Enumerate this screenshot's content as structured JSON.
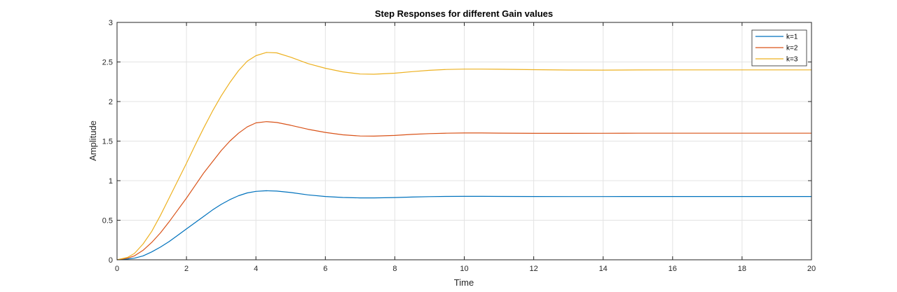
{
  "chart_data": {
    "type": "line",
    "title": "Step Responses for different Gain values",
    "xlabel": "Time",
    "ylabel": "Amplitude",
    "xlim": [
      0,
      20
    ],
    "ylim": [
      0,
      3
    ],
    "xticks": [
      0,
      2,
      4,
      6,
      8,
      10,
      12,
      14,
      16,
      18,
      20
    ],
    "yticks": [
      0,
      0.5,
      1,
      1.5,
      2,
      2.5,
      3
    ],
    "grid": true,
    "legend_position": "top-right",
    "series": [
      {
        "name": "k=1",
        "color": "#0072BD",
        "x": [
          0,
          0.3,
          0.5,
          0.75,
          1,
          1.25,
          1.5,
          1.75,
          2,
          2.25,
          2.5,
          2.75,
          3,
          3.25,
          3.5,
          3.75,
          4,
          4.3,
          4.6,
          5,
          5.5,
          6,
          6.5,
          7,
          7.4,
          8,
          8.5,
          9,
          9.5,
          10,
          10.5,
          11,
          12,
          13,
          14,
          15,
          16,
          17,
          18,
          19,
          20
        ],
        "y": [
          0,
          0.01,
          0.02,
          0.05,
          0.1,
          0.16,
          0.23,
          0.31,
          0.39,
          0.47,
          0.55,
          0.63,
          0.7,
          0.76,
          0.81,
          0.845,
          0.865,
          0.873,
          0.868,
          0.85,
          0.82,
          0.8,
          0.788,
          0.782,
          0.782,
          0.787,
          0.793,
          0.798,
          0.801,
          0.802,
          0.802,
          0.801,
          0.8,
          0.799,
          0.799,
          0.8,
          0.8,
          0.8,
          0.8,
          0.8,
          0.8
        ]
      },
      {
        "name": "k=2",
        "color": "#D95319",
        "x": [
          0,
          0.3,
          0.5,
          0.75,
          1,
          1.25,
          1.5,
          1.75,
          2,
          2.25,
          2.5,
          2.75,
          3,
          3.25,
          3.5,
          3.75,
          4,
          4.3,
          4.6,
          5,
          5.5,
          6,
          6.5,
          7,
          7.4,
          8,
          8.5,
          9,
          9.5,
          10,
          10.5,
          11,
          12,
          13,
          14,
          15,
          16,
          17,
          18,
          19,
          20
        ],
        "y": [
          0,
          0.02,
          0.05,
          0.12,
          0.22,
          0.34,
          0.48,
          0.63,
          0.78,
          0.94,
          1.1,
          1.24,
          1.38,
          1.5,
          1.6,
          1.68,
          1.73,
          1.746,
          1.735,
          1.7,
          1.65,
          1.61,
          1.58,
          1.565,
          1.563,
          1.572,
          1.585,
          1.595,
          1.6,
          1.603,
          1.603,
          1.601,
          1.598,
          1.598,
          1.599,
          1.6,
          1.6,
          1.6,
          1.6,
          1.6,
          1.6
        ]
      },
      {
        "name": "k=3",
        "color": "#EDB120",
        "x": [
          0,
          0.3,
          0.5,
          0.75,
          1,
          1.25,
          1.5,
          1.75,
          2,
          2.25,
          2.5,
          2.75,
          3,
          3.25,
          3.5,
          3.75,
          4,
          4.3,
          4.6,
          5,
          5.5,
          6,
          6.5,
          7,
          7.4,
          8,
          8.5,
          9,
          9.5,
          10,
          10.5,
          11,
          12,
          13,
          14,
          15,
          16,
          17,
          18,
          19,
          20
        ],
        "y": [
          0,
          0.03,
          0.08,
          0.2,
          0.36,
          0.56,
          0.78,
          1.0,
          1.22,
          1.45,
          1.67,
          1.88,
          2.07,
          2.24,
          2.39,
          2.51,
          2.58,
          2.62,
          2.615,
          2.56,
          2.48,
          2.42,
          2.375,
          2.348,
          2.345,
          2.358,
          2.378,
          2.395,
          2.405,
          2.41,
          2.41,
          2.408,
          2.403,
          2.398,
          2.397,
          2.399,
          2.4,
          2.4,
          2.4,
          2.4,
          2.4
        ]
      }
    ]
  }
}
